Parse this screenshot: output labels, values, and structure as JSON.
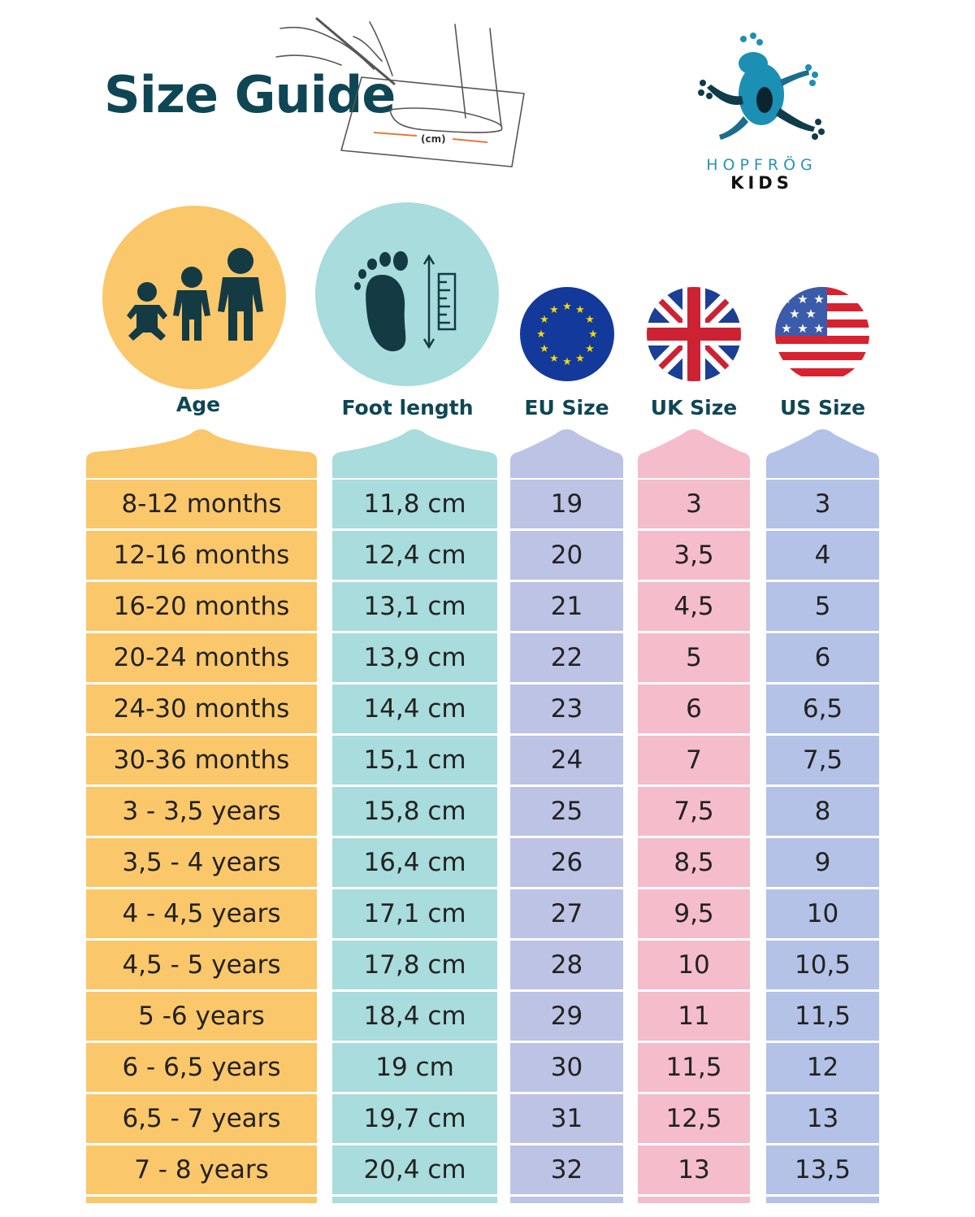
{
  "header": {
    "title": "Size Guide",
    "sketch_label": "(cm)"
  },
  "logo": {
    "name": "HOPFRÖG",
    "subname": "KIDS",
    "icon": "frog-icon"
  },
  "columns": {
    "age": {
      "label": "Age",
      "icon": "children-icon",
      "color": "#fbc76b"
    },
    "foot": {
      "label": "Foot length",
      "icon": "footprint-ruler-icon",
      "color": "#a9dcdc"
    },
    "eu": {
      "label": "EU Size",
      "icon": "eu-flag-icon",
      "color": "#bcc3e4"
    },
    "uk": {
      "label": "UK Size",
      "icon": "uk-flag-icon",
      "color": "#f5bccb"
    },
    "us": {
      "label": "US Size",
      "icon": "us-flag-icon",
      "color": "#b3c2e6"
    }
  },
  "rows": [
    {
      "age": "8-12 months",
      "foot": "11,8 cm",
      "eu": "19",
      "uk": "3",
      "us": "3"
    },
    {
      "age": "12-16 months",
      "foot": "12,4 cm",
      "eu": "20",
      "uk": "3,5",
      "us": "4"
    },
    {
      "age": "16-20 months",
      "foot": "13,1 cm",
      "eu": "21",
      "uk": "4,5",
      "us": "5"
    },
    {
      "age": "20-24 months",
      "foot": "13,9 cm",
      "eu": "22",
      "uk": "5",
      "us": "6"
    },
    {
      "age": "24-30 months",
      "foot": "14,4 cm",
      "eu": "23",
      "uk": "6",
      "us": "6,5"
    },
    {
      "age": "30-36 months",
      "foot": "15,1 cm",
      "eu": "24",
      "uk": "7",
      "us": "7,5"
    },
    {
      "age": "3 - 3,5 years",
      "foot": "15,8 cm",
      "eu": "25",
      "uk": "7,5",
      "us": "8"
    },
    {
      "age": "3,5 - 4 years",
      "foot": "16,4 cm",
      "eu": "26",
      "uk": "8,5",
      "us": "9"
    },
    {
      "age": "4 - 4,5 years",
      "foot": "17,1 cm",
      "eu": "27",
      "uk": "9,5",
      "us": "10"
    },
    {
      "age": "4,5 - 5 years",
      "foot": "17,8 cm",
      "eu": "28",
      "uk": "10",
      "us": "10,5"
    },
    {
      "age": "5 -6 years",
      "foot": "18,4 cm",
      "eu": "29",
      "uk": "11",
      "us": "11,5"
    },
    {
      "age": "6 - 6,5 years",
      "foot": "19 cm",
      "eu": "30",
      "uk": "11,5",
      "us": "12"
    },
    {
      "age": "6,5 - 7 years",
      "foot": "19,7 cm",
      "eu": "31",
      "uk": "12,5",
      "us": "13"
    },
    {
      "age": "7 - 8 years",
      "foot": "20,4 cm",
      "eu": "32",
      "uk": "13",
      "us": "13,5"
    }
  ]
}
